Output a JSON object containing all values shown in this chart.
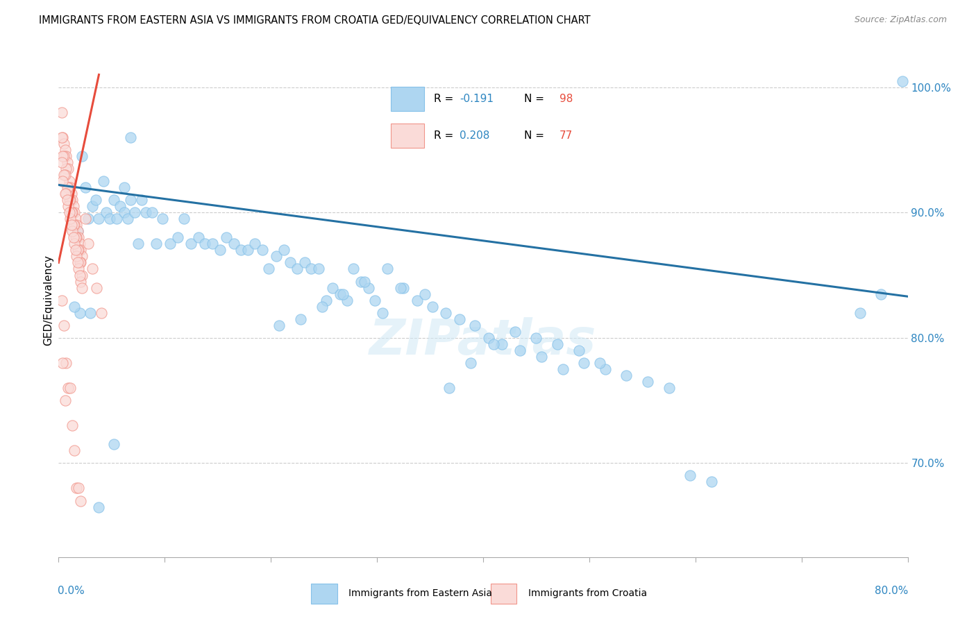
{
  "title": "IMMIGRANTS FROM EASTERN ASIA VS IMMIGRANTS FROM CROATIA GED/EQUIVALENCY CORRELATION CHART",
  "source": "Source: ZipAtlas.com",
  "ylabel": "GED/Equivalency",
  "xmin": 0.0,
  "xmax": 0.8,
  "ymin": 0.625,
  "ymax": 1.035,
  "right_yticks": [
    0.7,
    0.8,
    0.9,
    1.0
  ],
  "legend_r1": "R = -0.191",
  "legend_n1": "N = 98",
  "legend_r2": "R = 0.208",
  "legend_n2": "N = 77",
  "color_blue_fill": "#AED6F1",
  "color_blue_edge": "#85C1E9",
  "color_pink_fill": "#FADBD8",
  "color_pink_edge": "#F1948A",
  "color_blue_line": "#2471A3",
  "color_pink_line": "#E74C3C",
  "color_r_value": "#2E86C1",
  "color_n_value": "#E74C3C",
  "color_axis": "#2E86C1",
  "blue_line_y0": 0.922,
  "blue_line_y1": 0.833,
  "pink_line_x0": 0.0,
  "pink_line_x1": 0.038,
  "pink_line_y0": 0.86,
  "pink_line_y1": 1.01,
  "blue_x": [
    0.018,
    0.022,
    0.025,
    0.028,
    0.032,
    0.035,
    0.038,
    0.042,
    0.045,
    0.048,
    0.052,
    0.055,
    0.058,
    0.062,
    0.065,
    0.068,
    0.072,
    0.075,
    0.078,
    0.082,
    0.088,
    0.092,
    0.098,
    0.105,
    0.112,
    0.118,
    0.125,
    0.132,
    0.138,
    0.145,
    0.152,
    0.158,
    0.165,
    0.172,
    0.178,
    0.185,
    0.192,
    0.198,
    0.205,
    0.212,
    0.218,
    0.225,
    0.232,
    0.238,
    0.245,
    0.252,
    0.258,
    0.265,
    0.272,
    0.278,
    0.285,
    0.292,
    0.298,
    0.31,
    0.325,
    0.338,
    0.352,
    0.365,
    0.378,
    0.392,
    0.405,
    0.418,
    0.435,
    0.455,
    0.475,
    0.495,
    0.515,
    0.535,
    0.555,
    0.575,
    0.595,
    0.615,
    0.49,
    0.51,
    0.47,
    0.45,
    0.43,
    0.41,
    0.388,
    0.368,
    0.345,
    0.322,
    0.305,
    0.288,
    0.268,
    0.248,
    0.228,
    0.208,
    0.062,
    0.03,
    0.755,
    0.775,
    0.02,
    0.015,
    0.038,
    0.052,
    0.068,
    0.795
  ],
  "blue_y": [
    0.885,
    0.945,
    0.92,
    0.895,
    0.905,
    0.91,
    0.895,
    0.925,
    0.9,
    0.895,
    0.91,
    0.895,
    0.905,
    0.9,
    0.895,
    0.91,
    0.9,
    0.875,
    0.91,
    0.9,
    0.9,
    0.875,
    0.895,
    0.875,
    0.88,
    0.895,
    0.875,
    0.88,
    0.875,
    0.875,
    0.87,
    0.88,
    0.875,
    0.87,
    0.87,
    0.875,
    0.87,
    0.855,
    0.865,
    0.87,
    0.86,
    0.855,
    0.86,
    0.855,
    0.855,
    0.83,
    0.84,
    0.835,
    0.83,
    0.855,
    0.845,
    0.84,
    0.83,
    0.855,
    0.84,
    0.83,
    0.825,
    0.82,
    0.815,
    0.81,
    0.8,
    0.795,
    0.79,
    0.785,
    0.775,
    0.78,
    0.775,
    0.77,
    0.765,
    0.76,
    0.69,
    0.685,
    0.79,
    0.78,
    0.795,
    0.8,
    0.805,
    0.795,
    0.78,
    0.76,
    0.835,
    0.84,
    0.82,
    0.845,
    0.835,
    0.825,
    0.815,
    0.81,
    0.92,
    0.82,
    0.82,
    0.835,
    0.82,
    0.825,
    0.665,
    0.715,
    0.96,
    1.005
  ],
  "pink_x": [
    0.003,
    0.004,
    0.005,
    0.006,
    0.007,
    0.008,
    0.009,
    0.01,
    0.011,
    0.012,
    0.013,
    0.014,
    0.015,
    0.016,
    0.017,
    0.018,
    0.019,
    0.02,
    0.021,
    0.022,
    0.003,
    0.005,
    0.007,
    0.009,
    0.011,
    0.013,
    0.015,
    0.017,
    0.019,
    0.021,
    0.004,
    0.006,
    0.008,
    0.01,
    0.012,
    0.014,
    0.016,
    0.018,
    0.02,
    0.022,
    0.003,
    0.005,
    0.007,
    0.009,
    0.011,
    0.013,
    0.015,
    0.017,
    0.019,
    0.021,
    0.004,
    0.006,
    0.008,
    0.01,
    0.012,
    0.014,
    0.016,
    0.018,
    0.02,
    0.022,
    0.003,
    0.005,
    0.007,
    0.009,
    0.011,
    0.013,
    0.015,
    0.017,
    0.019,
    0.021,
    0.004,
    0.006,
    0.025,
    0.028,
    0.032,
    0.036,
    0.04
  ],
  "pink_y": [
    0.98,
    0.96,
    0.955,
    0.95,
    0.945,
    0.94,
    0.935,
    0.925,
    0.92,
    0.915,
    0.91,
    0.905,
    0.9,
    0.895,
    0.89,
    0.885,
    0.88,
    0.875,
    0.87,
    0.865,
    0.96,
    0.945,
    0.935,
    0.92,
    0.91,
    0.9,
    0.89,
    0.88,
    0.87,
    0.86,
    0.945,
    0.93,
    0.92,
    0.91,
    0.9,
    0.89,
    0.88,
    0.87,
    0.86,
    0.85,
    0.94,
    0.93,
    0.915,
    0.905,
    0.895,
    0.885,
    0.875,
    0.865,
    0.855,
    0.845,
    0.925,
    0.915,
    0.91,
    0.9,
    0.89,
    0.88,
    0.87,
    0.86,
    0.85,
    0.84,
    0.83,
    0.81,
    0.78,
    0.76,
    0.76,
    0.73,
    0.71,
    0.68,
    0.68,
    0.67,
    0.78,
    0.75,
    0.895,
    0.875,
    0.855,
    0.84,
    0.82
  ]
}
